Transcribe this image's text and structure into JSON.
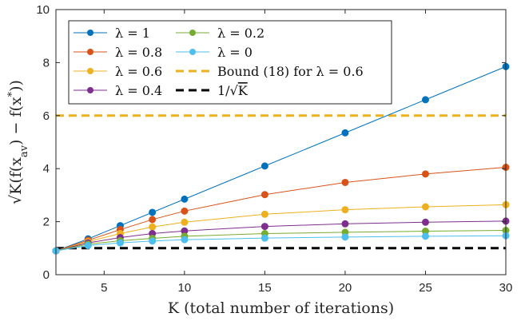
{
  "chart_data": {
    "type": "line",
    "xlabel": "K (total number of iterations)",
    "ylabel_prefix": "√K",
    "ylabel_expr": "(f(x",
    "ylabel_sub": "av",
    "ylabel_mid": ") − f(x",
    "ylabel_sup": "*",
    "ylabel_end": "))",
    "xlim": [
      2,
      30
    ],
    "ylim": [
      0,
      10
    ],
    "xticks": [
      5,
      10,
      15,
      20,
      25,
      30
    ],
    "yticks": [
      0,
      2,
      4,
      6,
      8,
      10
    ],
    "grid": false,
    "legend_position": "top-left",
    "x": [
      2,
      4,
      6,
      8,
      10,
      15,
      20,
      25,
      30
    ],
    "series": [
      {
        "name": "λ = 1",
        "color": "#0072BD",
        "values": [
          0.9,
          1.35,
          1.85,
          2.35,
          2.85,
          4.1,
          5.35,
          6.6,
          7.85
        ]
      },
      {
        "name": "λ = 0.8",
        "color": "#D95319",
        "values": [
          0.9,
          1.3,
          1.7,
          2.08,
          2.4,
          3.02,
          3.48,
          3.8,
          4.05
        ]
      },
      {
        "name": "λ = 0.6",
        "color": "#EDB120",
        "values": [
          0.9,
          1.25,
          1.55,
          1.8,
          1.98,
          2.28,
          2.45,
          2.56,
          2.64
        ]
      },
      {
        "name": "λ = 0.4",
        "color": "#7E2F8E",
        "values": [
          0.9,
          1.2,
          1.4,
          1.55,
          1.65,
          1.82,
          1.92,
          1.98,
          2.02
        ]
      },
      {
        "name": "λ = 0.2",
        "color": "#77AC30",
        "values": [
          0.9,
          1.15,
          1.28,
          1.37,
          1.45,
          1.55,
          1.6,
          1.64,
          1.67
        ]
      },
      {
        "name": "λ = 0",
        "color": "#4DBEEE",
        "values": [
          0.9,
          1.1,
          1.2,
          1.27,
          1.32,
          1.38,
          1.42,
          1.45,
          1.47
        ]
      }
    ],
    "reference_lines": [
      {
        "name": "Bound (18) for λ = 0.6",
        "color": "#EDB120",
        "y": 6,
        "style": "dashed"
      },
      {
        "name_prefix": "1/",
        "name_radicand": "K",
        "color": "#000000",
        "y": 1,
        "style": "dashed"
      }
    ]
  }
}
